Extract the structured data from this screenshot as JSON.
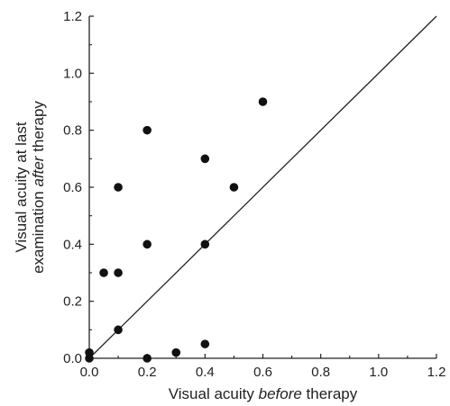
{
  "chart_data": {
    "type": "scatter",
    "xlim": [
      0,
      1.2
    ],
    "ylim": [
      0,
      1.2
    ],
    "x_ticks": [
      "0.0",
      "0.2",
      "0.4",
      "0.6",
      "0.8",
      "1.0",
      "1.2"
    ],
    "y_ticks": [
      "0.0",
      "0.2",
      "0.4",
      "0.6",
      "0.8",
      "1.0",
      "1.2"
    ],
    "xlabel": {
      "pre": "Visual acuity ",
      "em": "before",
      "post": " therapy"
    },
    "ylabel": {
      "line1": "Visual acuity at last",
      "line2_pre": "examination ",
      "line2_em": "after",
      "line2_post": " therapy"
    },
    "reference_line": {
      "from": [
        0,
        0
      ],
      "to": [
        1.2,
        1.2
      ],
      "meaning": "y = x"
    },
    "grid": false,
    "colors": {
      "points": "#111111",
      "axes": "#222222",
      "reference_line": "#222222"
    },
    "points": [
      {
        "x": 0.0,
        "y": 0.0
      },
      {
        "x": 0.0,
        "y": 0.02
      },
      {
        "x": 0.05,
        "y": 0.3
      },
      {
        "x": 0.1,
        "y": 0.3
      },
      {
        "x": 0.1,
        "y": 0.1
      },
      {
        "x": 0.1,
        "y": 0.6
      },
      {
        "x": 0.2,
        "y": 0.8
      },
      {
        "x": 0.2,
        "y": 0.4
      },
      {
        "x": 0.2,
        "y": 0.0
      },
      {
        "x": 0.3,
        "y": 0.02
      },
      {
        "x": 0.4,
        "y": 0.7
      },
      {
        "x": 0.4,
        "y": 0.4
      },
      {
        "x": 0.4,
        "y": 0.05
      },
      {
        "x": 0.5,
        "y": 0.6
      },
      {
        "x": 0.6,
        "y": 0.9
      }
    ]
  }
}
